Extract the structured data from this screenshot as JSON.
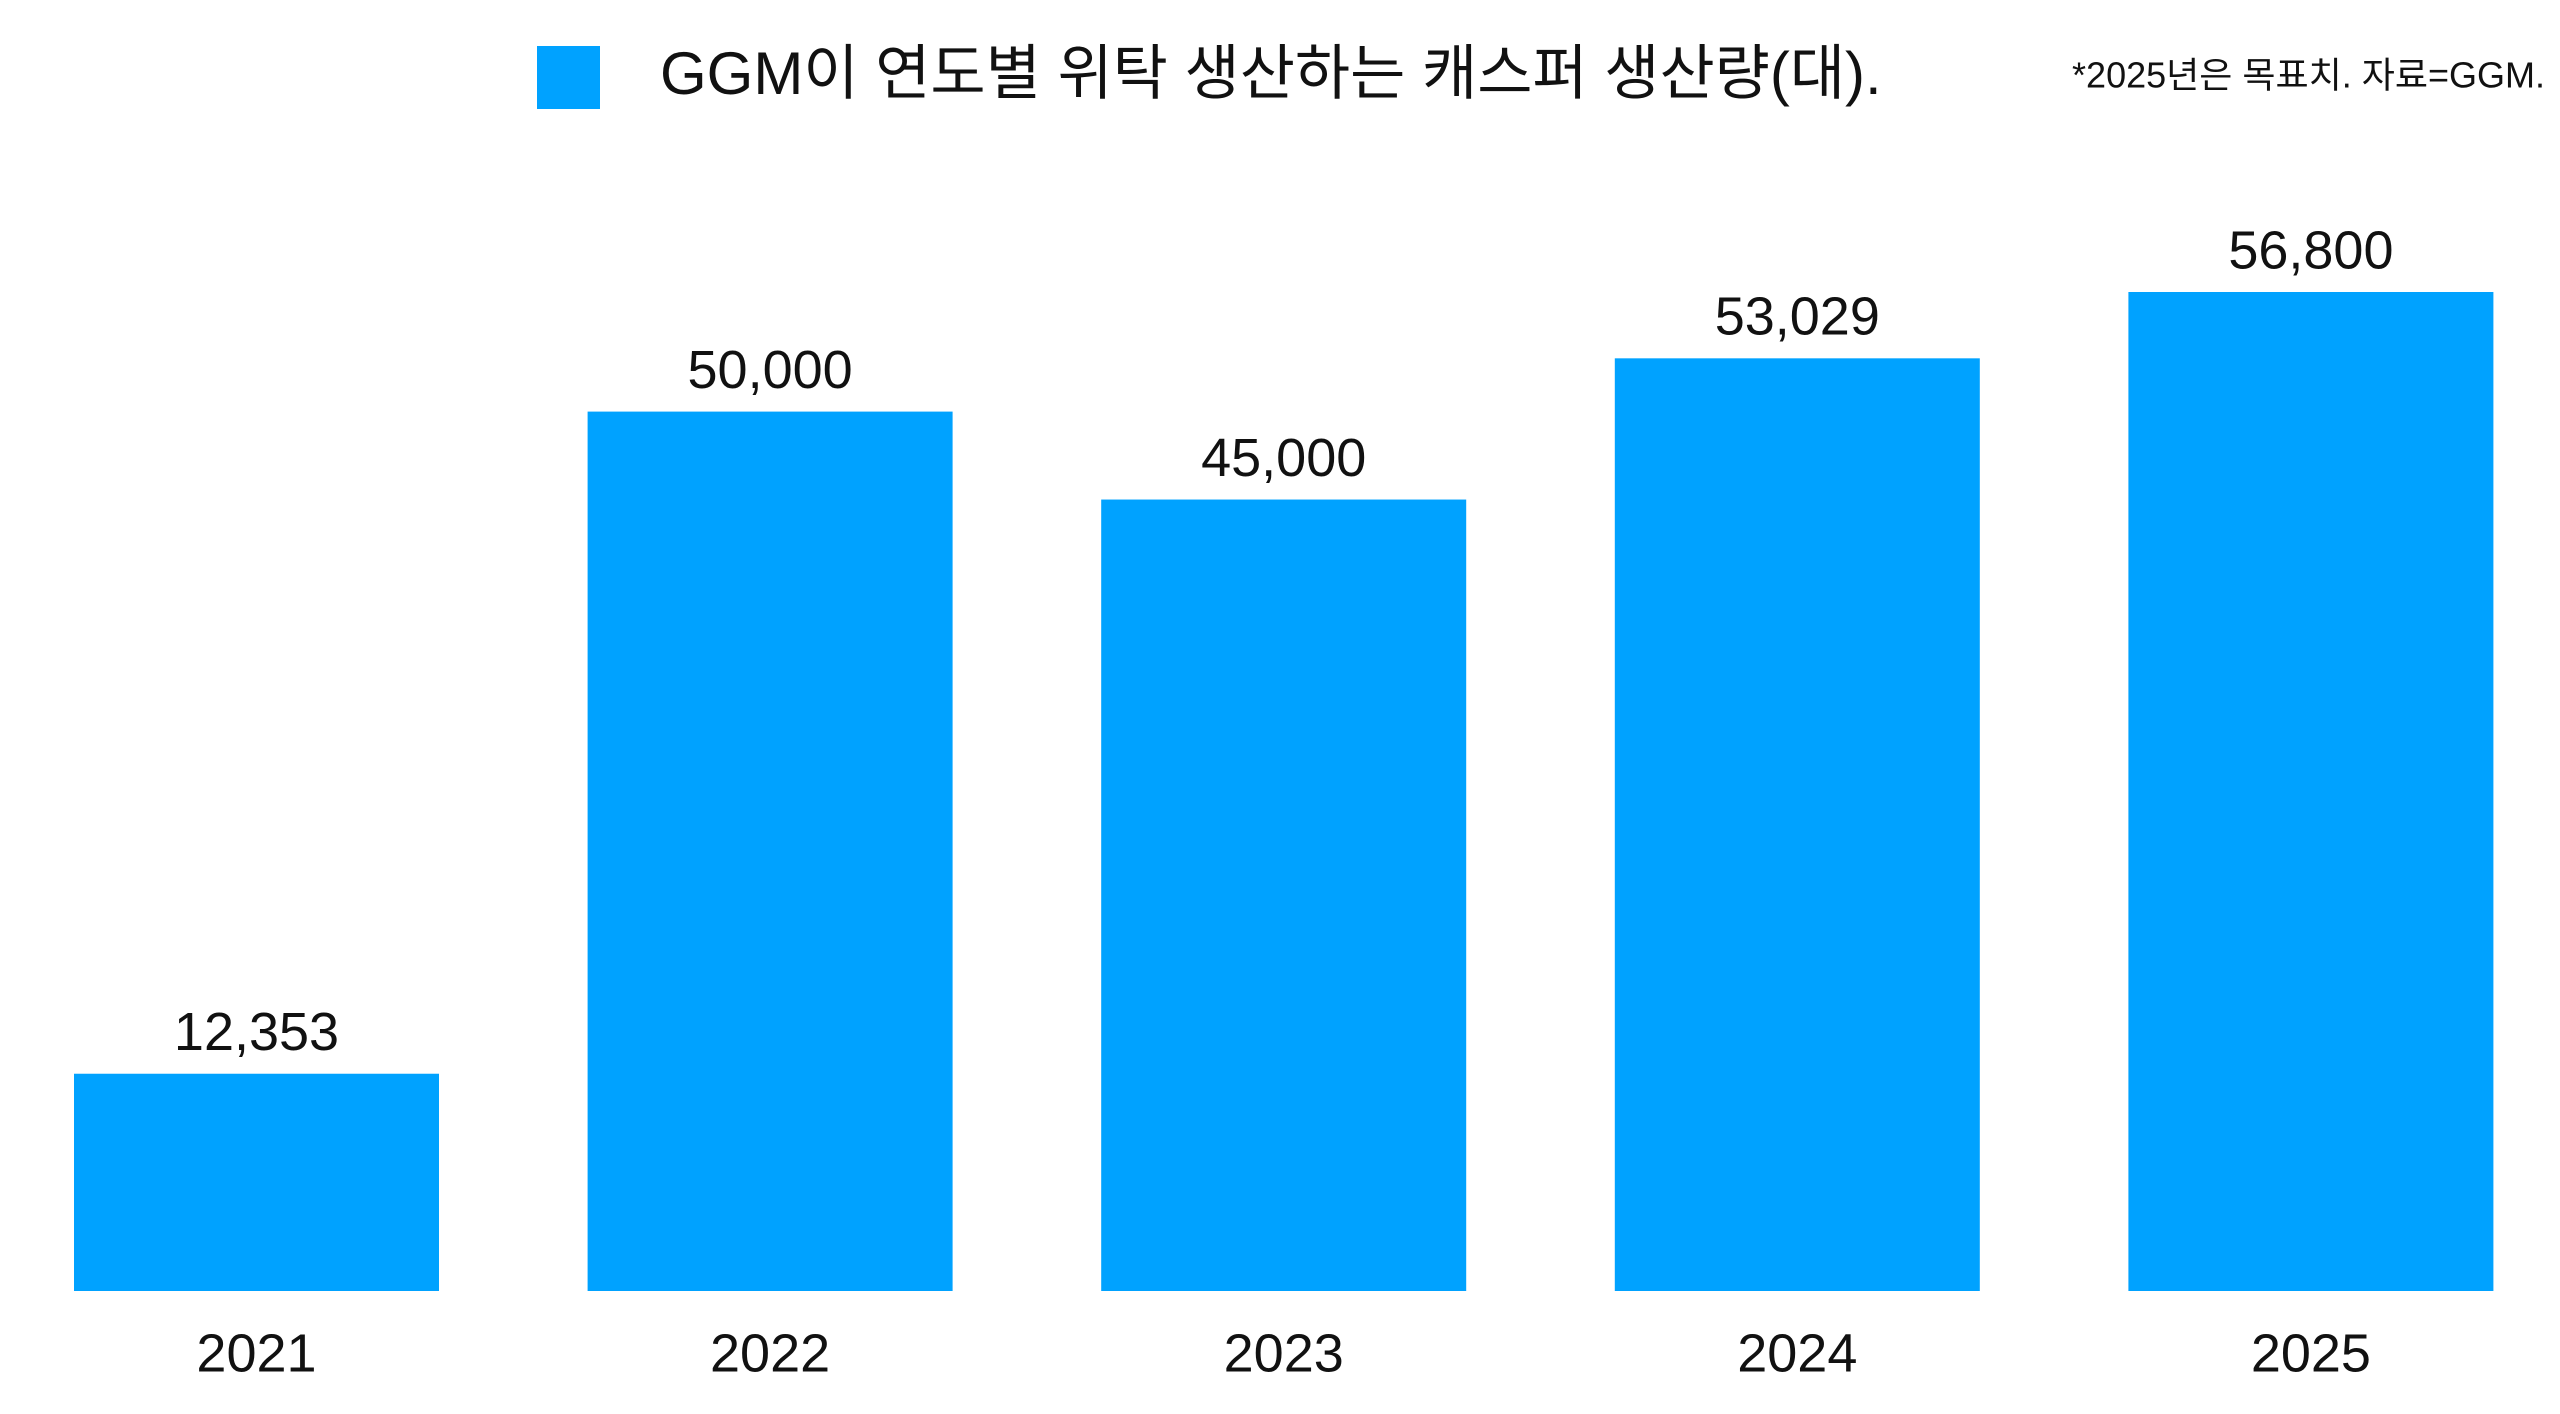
{
  "chart_data": {
    "type": "bar",
    "categories": [
      "2021",
      "2022",
      "2023",
      "2024",
      "2025"
    ],
    "series": [
      {
        "name": "GGM이 연도별 위탁 생산하는 캐스퍼 생산량(대).",
        "color": "#00a2ff",
        "values": [
          12353,
          50000,
          45000,
          53029,
          56800
        ],
        "value_labels": [
          "12,353",
          "50,000",
          "45,000",
          "53,029",
          "56,800"
        ]
      }
    ],
    "annotation": "*2025년은 목표치. 자료=GGM."
  }
}
